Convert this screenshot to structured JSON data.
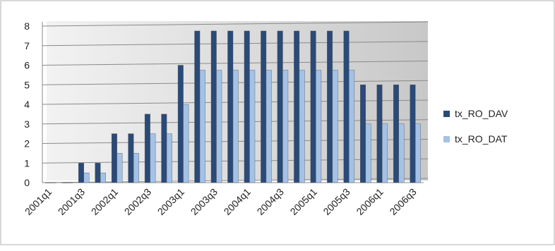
{
  "chart_data": {
    "type": "bar",
    "categories": [
      "2001q1",
      null,
      "2001q3",
      null,
      "2002q1",
      null,
      "2002q3",
      null,
      "2003q1",
      null,
      "2003q3",
      null,
      "2004q1",
      null,
      "2004q3",
      null,
      "2005q1",
      null,
      "2005q3",
      null,
      "2006q1",
      null,
      "2006q3"
    ],
    "series": [
      {
        "name": "tx_RO_DAV",
        "color": "#2a4a78",
        "values": [
          0,
          0,
          1,
          1,
          2.5,
          2.5,
          3.5,
          3.5,
          6,
          7.75,
          7.75,
          7.75,
          7.75,
          7.75,
          7.75,
          7.75,
          7.75,
          7.75,
          7.75,
          5,
          5,
          5,
          5
        ]
      },
      {
        "name": "tx_RO_DAT",
        "color": "#a4c2e6",
        "values": [
          0,
          0,
          0.5,
          0.5,
          1.5,
          1.5,
          2.5,
          2.5,
          4,
          5.75,
          5.75,
          5.75,
          5.75,
          5.75,
          5.75,
          5.75,
          5.75,
          5.75,
          5.75,
          3,
          3,
          3,
          3
        ]
      }
    ],
    "ylim": [
      0,
      8
    ],
    "yticks": [
      0,
      1,
      2,
      3,
      4,
      5,
      6,
      7,
      8
    ],
    "grid": true,
    "legend": "right"
  }
}
